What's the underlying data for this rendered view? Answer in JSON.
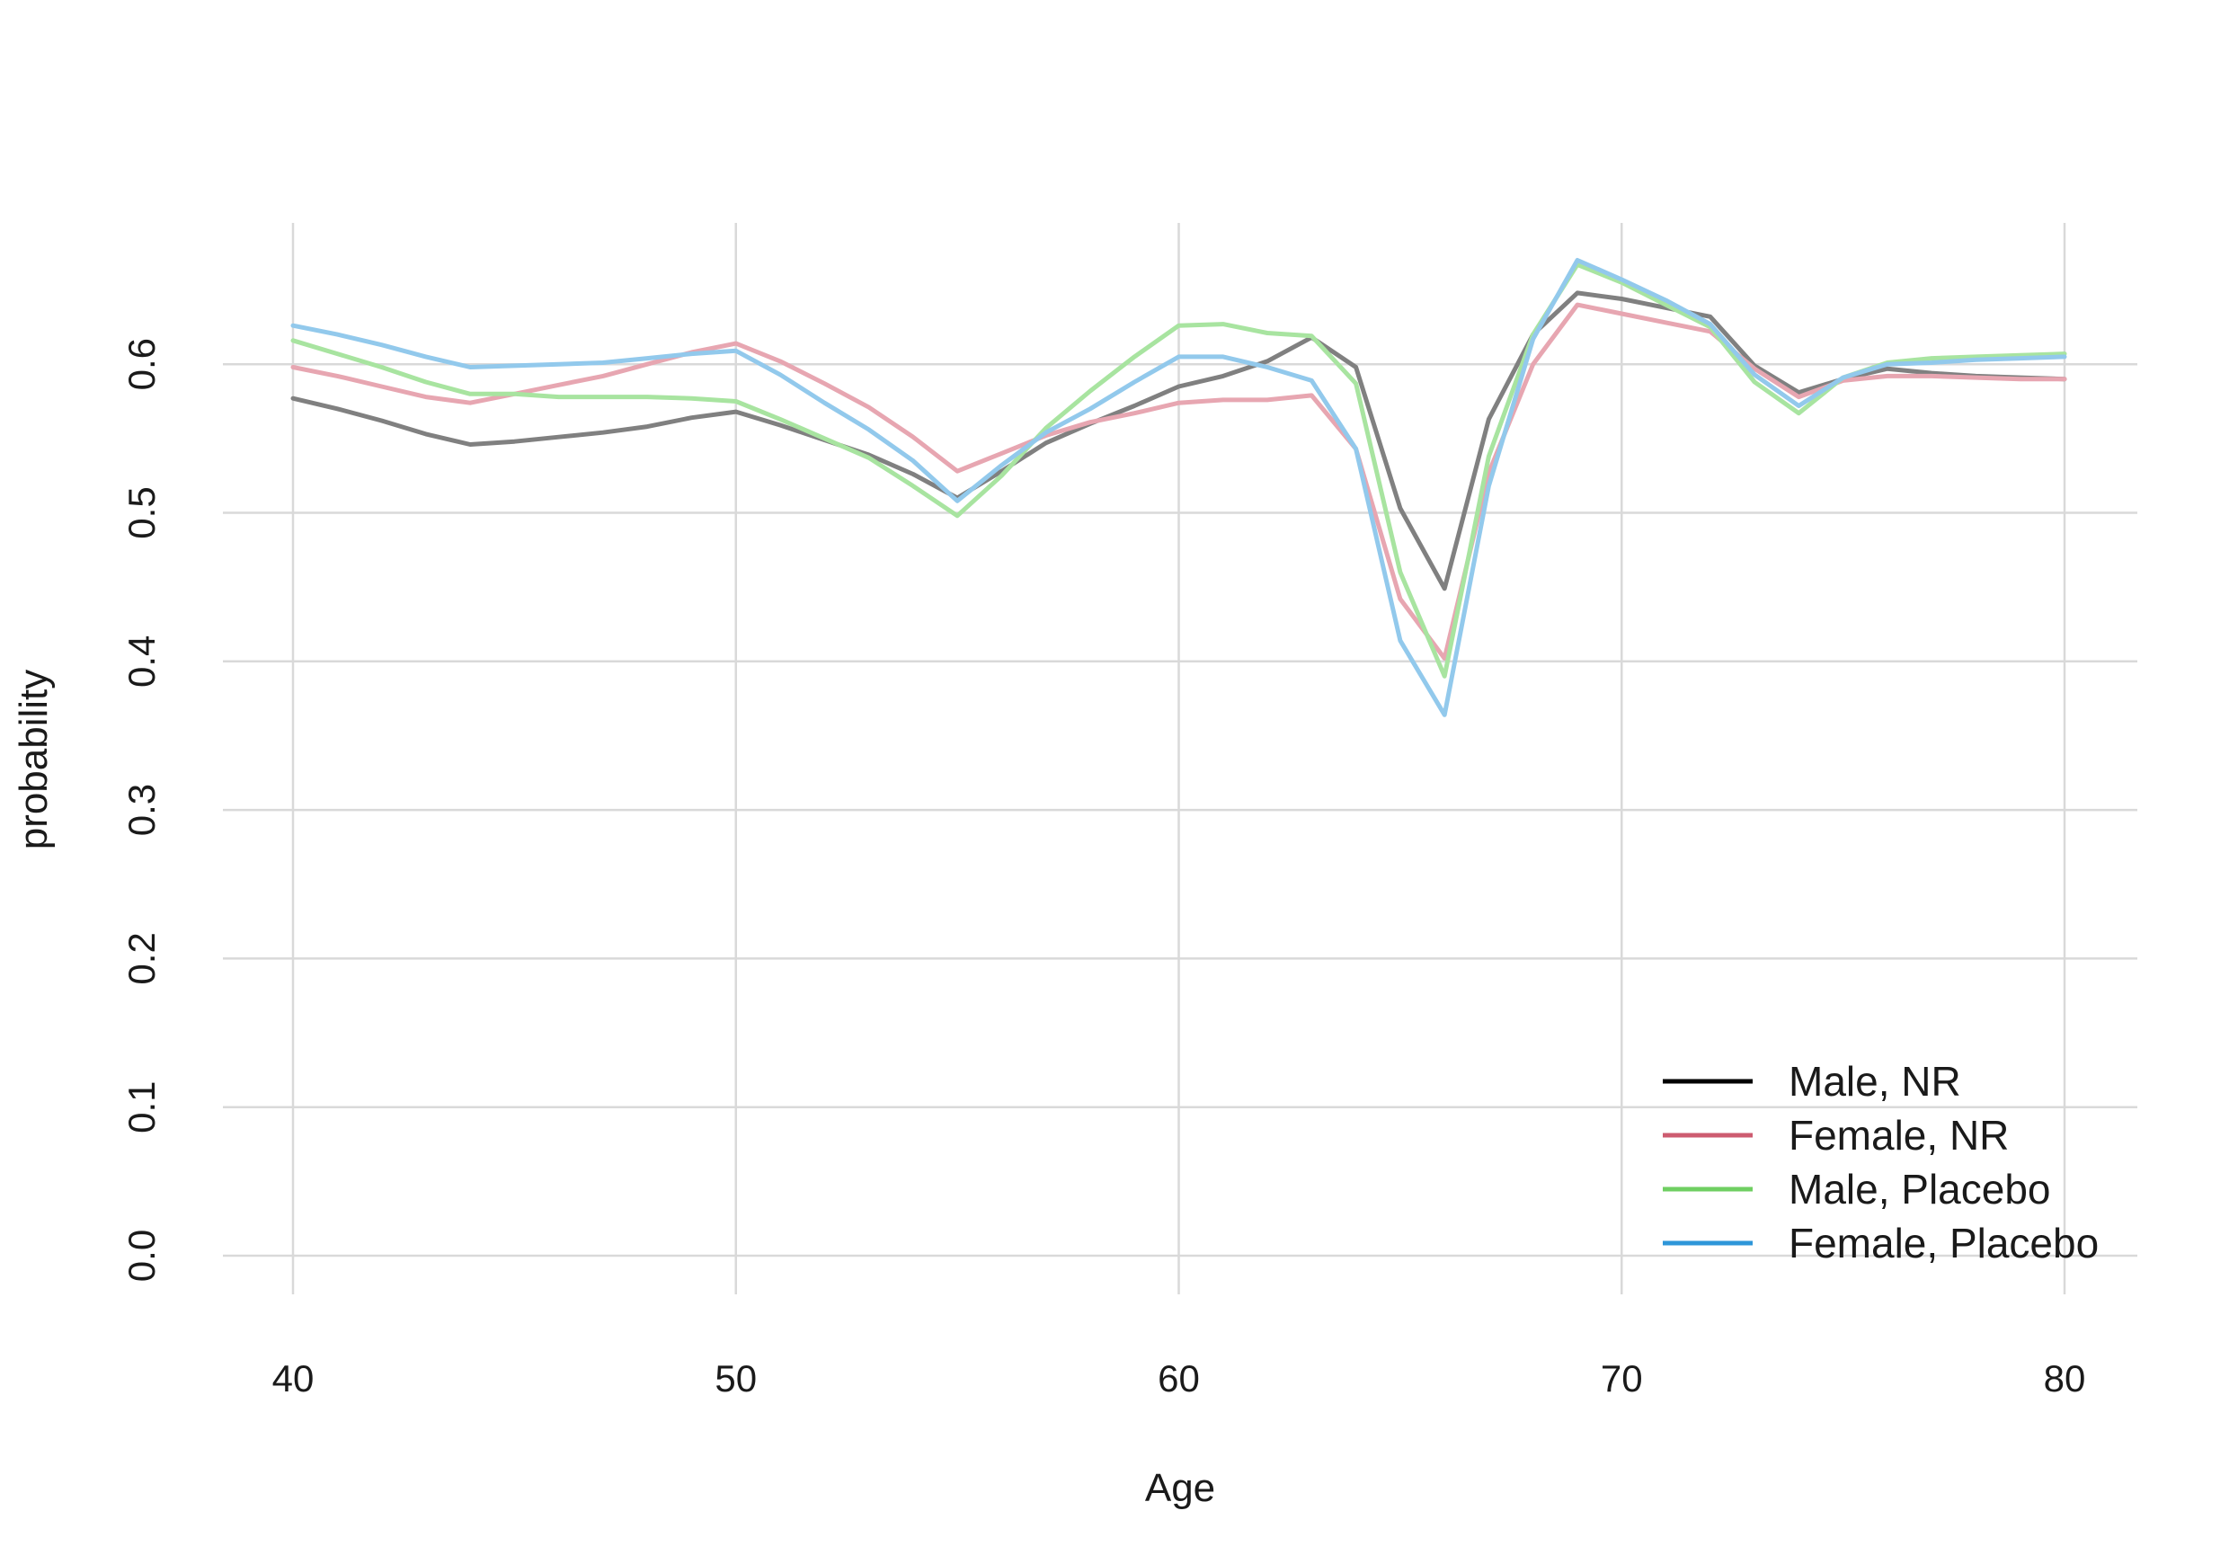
{
  "chart_data": {
    "type": "line",
    "title": "",
    "xlabel": "Age",
    "ylabel": "probability",
    "xlim": [
      40,
      80
    ],
    "ylim": [
      0.0,
      0.65
    ],
    "x_ticks": [
      40,
      50,
      60,
      70,
      80
    ],
    "y_ticks": [
      0.0,
      0.1,
      0.2,
      0.3,
      0.4,
      0.5,
      0.6
    ],
    "x_tick_labels": [
      "40",
      "50",
      "60",
      "70",
      "80"
    ],
    "y_tick_labels": [
      "0.0",
      "0.1",
      "0.2",
      "0.3",
      "0.4",
      "0.5",
      "0.6"
    ],
    "grid": true,
    "legend_position": "bottom-right",
    "x": [
      40,
      41,
      42,
      43,
      44,
      45,
      46,
      47,
      48,
      49,
      50,
      51,
      52,
      53,
      54,
      55,
      56,
      57,
      58,
      59,
      60,
      61,
      62,
      63,
      64,
      65,
      66,
      67,
      68,
      69,
      70,
      71,
      72,
      73,
      74,
      75,
      76,
      77,
      78,
      79,
      80
    ],
    "series": [
      {
        "name": "Male, NR",
        "color": "#000000",
        "line_color": "#808080",
        "values": [
          0.577,
          0.57,
          0.562,
          0.553,
          0.546,
          0.548,
          0.551,
          0.554,
          0.558,
          0.564,
          0.568,
          0.559,
          0.549,
          0.539,
          0.526,
          0.51,
          0.528,
          0.547,
          0.56,
          0.572,
          0.585,
          0.592,
          0.602,
          0.618,
          0.598,
          0.503,
          0.449,
          0.563,
          0.62,
          0.648,
          0.644,
          0.638,
          0.632,
          0.599,
          0.581,
          0.59,
          0.597,
          0.594,
          0.592,
          0.591,
          0.59
        ]
      },
      {
        "name": "Female, NR",
        "color": "#cd5c70",
        "line_color": "#e7a6b1",
        "values": [
          0.598,
          0.592,
          0.585,
          0.578,
          0.574,
          0.58,
          0.586,
          0.592,
          0.6,
          0.608,
          0.614,
          0.602,
          0.587,
          0.571,
          0.551,
          0.528,
          0.54,
          0.552,
          0.561,
          0.567,
          0.574,
          0.576,
          0.576,
          0.579,
          0.543,
          0.442,
          0.402,
          0.527,
          0.6,
          0.64,
          0.634,
          0.628,
          0.622,
          0.597,
          0.578,
          0.589,
          0.592,
          0.592,
          0.591,
          0.59,
          0.59
        ]
      },
      {
        "name": "Male, Placebo",
        "color": "#6fcf62",
        "line_color": "#a8e4a0",
        "values": [
          0.616,
          0.607,
          0.598,
          0.588,
          0.58,
          0.58,
          0.578,
          0.578,
          0.578,
          0.577,
          0.575,
          0.563,
          0.55,
          0.537,
          0.518,
          0.498,
          0.525,
          0.557,
          0.582,
          0.605,
          0.626,
          0.627,
          0.621,
          0.619,
          0.587,
          0.46,
          0.39,
          0.538,
          0.62,
          0.667,
          0.655,
          0.64,
          0.625,
          0.588,
          0.567,
          0.591,
          0.601,
          0.604,
          0.605,
          0.606,
          0.607
        ]
      },
      {
        "name": "Female, Placebo",
        "color": "#2e96d9",
        "line_color": "#92c9ec",
        "values": [
          0.626,
          0.62,
          0.613,
          0.605,
          0.598,
          0.599,
          0.6,
          0.601,
          0.604,
          0.607,
          0.609,
          0.593,
          0.574,
          0.556,
          0.535,
          0.508,
          0.532,
          0.554,
          0.57,
          0.588,
          0.605,
          0.605,
          0.598,
          0.589,
          0.543,
          0.414,
          0.364,
          0.518,
          0.617,
          0.67,
          0.657,
          0.643,
          0.627,
          0.593,
          0.572,
          0.591,
          0.6,
          0.601,
          0.603,
          0.604,
          0.605
        ]
      }
    ]
  }
}
